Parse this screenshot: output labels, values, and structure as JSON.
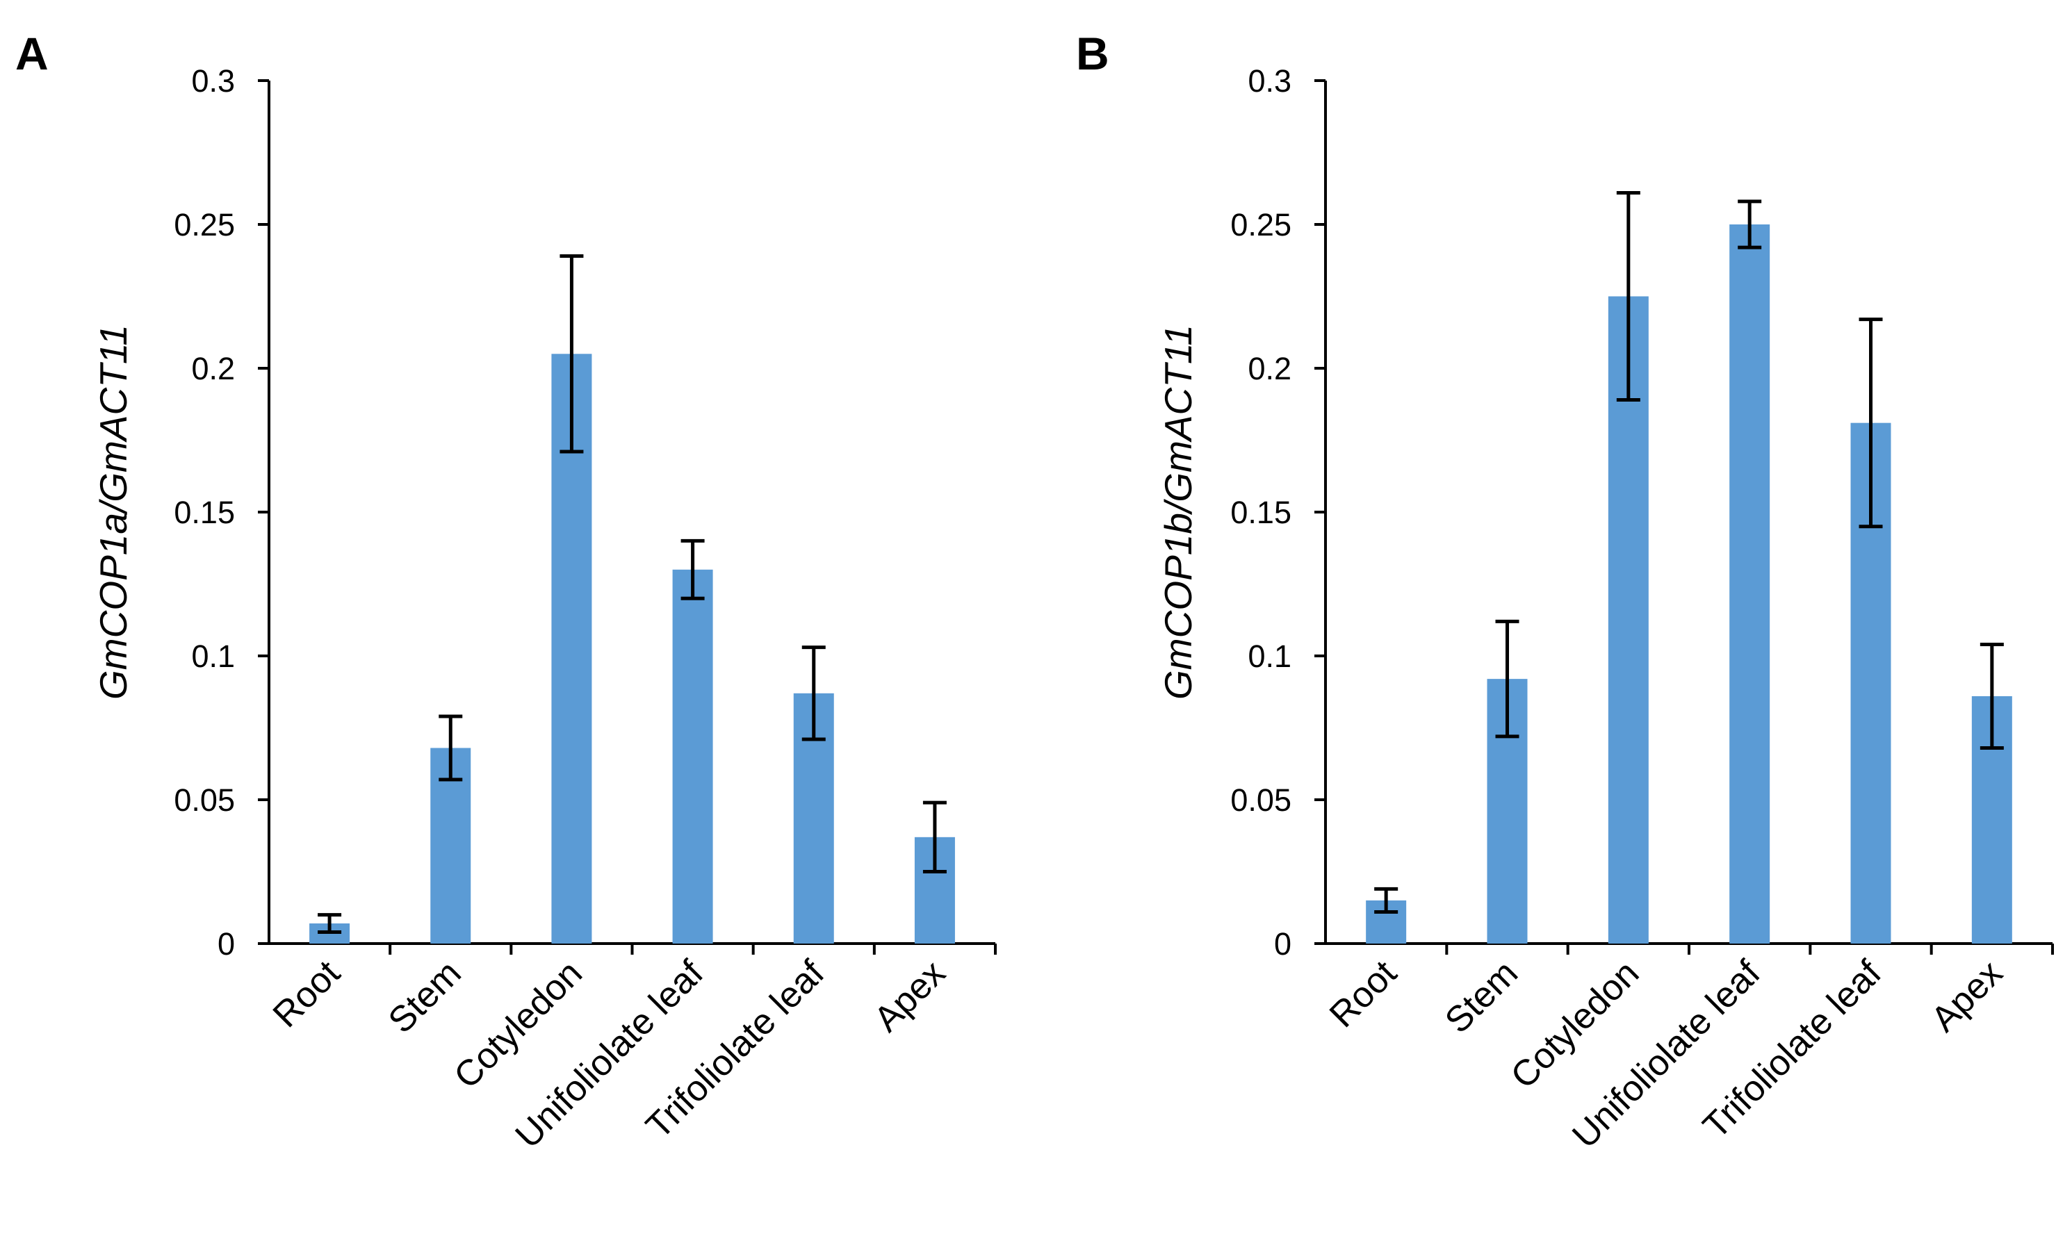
{
  "chart_data": [
    {
      "type": "bar",
      "panel_label": "A",
      "title": "",
      "xlabel": "",
      "ylabel": "GmCOP1a/GmACT11",
      "categories": [
        "Root",
        "Stem",
        "Cotyledon",
        "Unifoliolate leaf",
        "Trifoliolate leaf",
        "Apex"
      ],
      "values": [
        0.007,
        0.068,
        0.205,
        0.13,
        0.087,
        0.037
      ],
      "errors": [
        0.003,
        0.011,
        0.034,
        0.01,
        0.016,
        0.012
      ],
      "ylim": [
        0,
        0.3
      ],
      "yticks": [
        "0",
        "0.05",
        "0.1",
        "0.15",
        "0.2",
        "0.25",
        "0.3"
      ],
      "bar_color": "#5b9bd5",
      "grid": false,
      "legend": "none"
    },
    {
      "type": "bar",
      "panel_label": "B",
      "title": "",
      "xlabel": "",
      "ylabel": "GmCOP1b/GmACT11",
      "categories": [
        "Root",
        "Stem",
        "Cotyledon",
        "Unifoliolate leaf",
        "Trifoliolate leaf",
        "Apex"
      ],
      "values": [
        0.015,
        0.092,
        0.225,
        0.25,
        0.181,
        0.086
      ],
      "errors": [
        0.004,
        0.02,
        0.036,
        0.008,
        0.036,
        0.018
      ],
      "ylim": [
        0,
        0.3
      ],
      "yticks": [
        "0",
        "0.05",
        "0.1",
        "0.15",
        "0.2",
        "0.25",
        "0.3"
      ],
      "bar_color": "#5b9bd5",
      "grid": false,
      "legend": "none"
    }
  ]
}
